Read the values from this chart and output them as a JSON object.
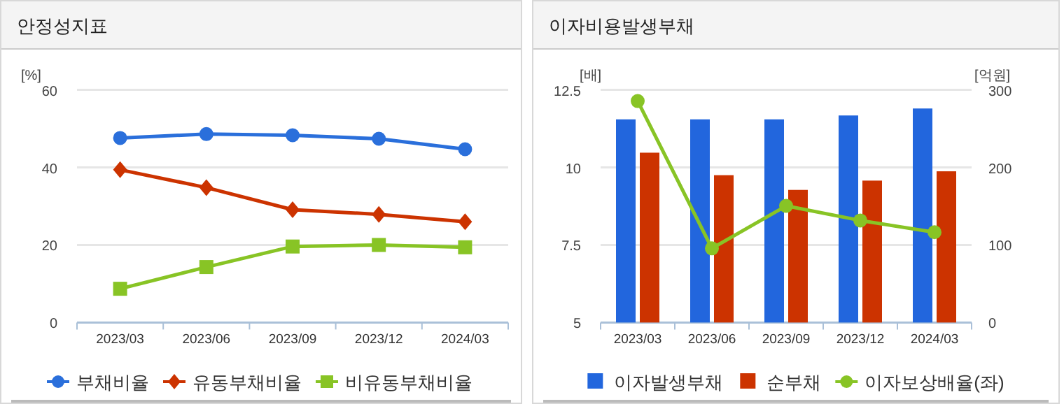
{
  "chart_data": [
    {
      "type": "line",
      "title": "안정성지표",
      "ylabel": "[%]",
      "categories": [
        "2023/03",
        "2023/06",
        "2023/09",
        "2023/12",
        "2024/03"
      ],
      "ylim": [
        0,
        60
      ],
      "yticks": [
        0,
        20,
        40,
        60
      ],
      "grid": "y",
      "legend": "bottom",
      "line_style": "solid",
      "series": [
        {
          "name": "부채비율",
          "color": "#2a6fdb",
          "marker": "circle",
          "values": [
            47.6,
            48.6,
            48.3,
            47.4,
            44.7
          ]
        },
        {
          "name": "유동부채비율",
          "color": "#cc3300",
          "marker": "diamond",
          "values": [
            39.4,
            34.8,
            29.1,
            27.9,
            26.0
          ]
        },
        {
          "name": "비유동부채비율",
          "color": "#88c425",
          "marker": "square",
          "values": [
            8.7,
            14.3,
            19.6,
            20.0,
            19.4
          ]
        }
      ]
    },
    {
      "type": "bar",
      "title": "이자비용발생부채",
      "ylabel": "[배]",
      "y2label": "[억원]",
      "categories": [
        "2023/03",
        "2023/06",
        "2023/09",
        "2023/12",
        "2024/03"
      ],
      "ylim": [
        5,
        12.5
      ],
      "yticks": [
        5,
        7.5,
        10,
        12.5
      ],
      "y2lim": [
        0,
        300
      ],
      "y2ticks": [
        0,
        100,
        200,
        300
      ],
      "grid": "y",
      "legend": "bottom",
      "series": [
        {
          "name": "이자발생부채",
          "color": "#2266dd",
          "axis": "y2",
          "values": [
            262,
            262,
            262,
            267,
            276
          ]
        },
        {
          "name": "순부채",
          "color": "#cc3300",
          "axis": "y2",
          "values": [
            219,
            190,
            171,
            183,
            195
          ]
        },
        {
          "name": "이자보상배율(좌)",
          "type": "line",
          "color": "#88c425",
          "marker": "circle",
          "axis": "y",
          "values": [
            12.14,
            7.39,
            8.76,
            8.29,
            7.91
          ]
        }
      ]
    }
  ]
}
